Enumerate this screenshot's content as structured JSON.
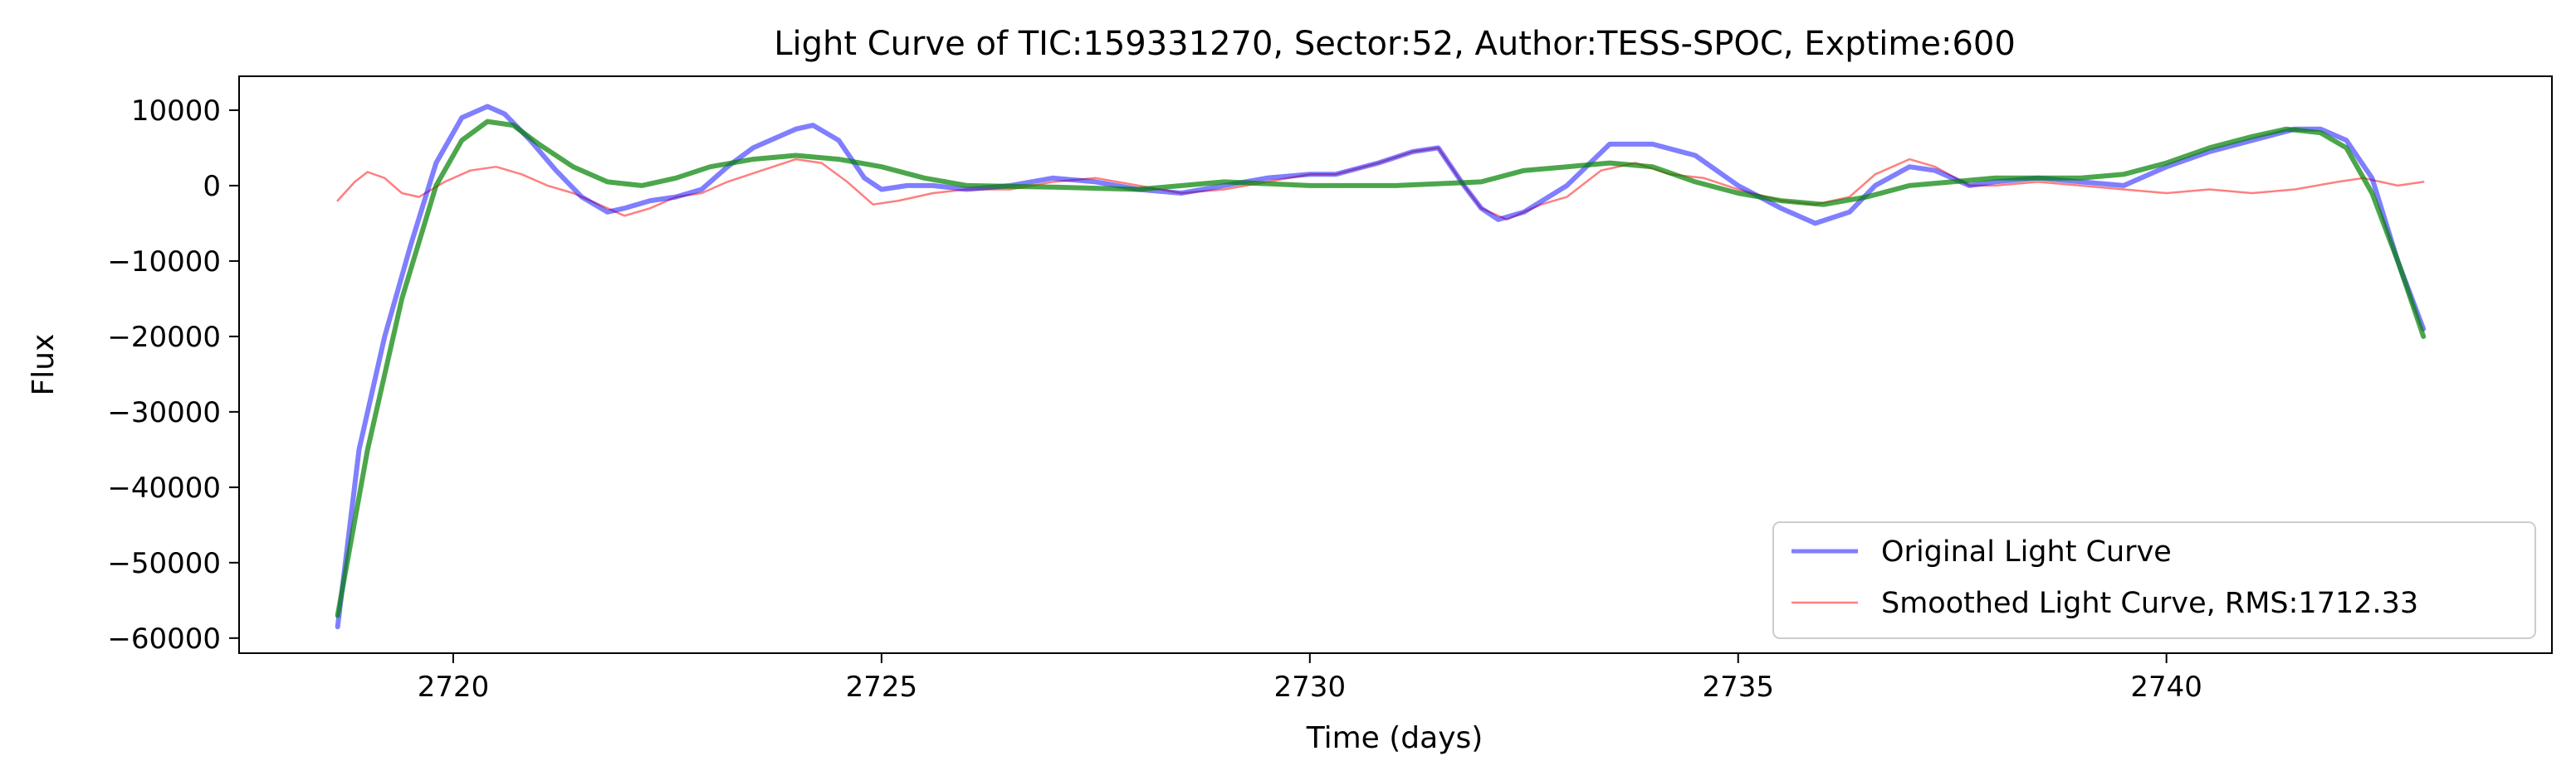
{
  "chart_data": {
    "type": "line",
    "title": "Light Curve of TIC:159331270, Sector:52, Author:TESS-SPOC, Exptime:600",
    "xlabel": "Time (days)",
    "ylabel": "Flux",
    "xlim": [
      2717.5,
      2744.5
    ],
    "ylim": [
      -62000,
      14500
    ],
    "x_ticks": [
      2720,
      2725,
      2730,
      2735,
      2740
    ],
    "y_ticks": [
      10000,
      0,
      -10000,
      -20000,
      -30000,
      -40000,
      -50000,
      -60000
    ],
    "y_tick_labels": [
      "10000",
      "0",
      "−10000",
      "−20000",
      "−30000",
      "−40000",
      "−50000",
      "−60000"
    ],
    "grid": false,
    "legend_position": "lower-right",
    "colors": {
      "original": "#0000ff",
      "smoothed": "#ff0000",
      "fit": "#008000"
    },
    "series": [
      {
        "name": "Original Light Curve",
        "key": "original",
        "x": [
          2718.65,
          2718.9,
          2719.2,
          2719.5,
          2719.8,
          2720.1,
          2720.4,
          2720.6,
          2720.9,
          2721.2,
          2721.5,
          2721.8,
          2722.0,
          2722.3,
          2722.6,
          2722.9,
          2723.2,
          2723.5,
          2723.8,
          2724.0,
          2724.2,
          2724.5,
          2724.8,
          2725.0,
          2725.3,
          2725.6,
          2726.0,
          2726.5,
          2727.0,
          2727.5,
          2728.0,
          2728.5,
          2729.0,
          2729.5,
          2730.0,
          2730.3,
          2730.8,
          2731.2,
          2731.5,
          2731.8,
          2732.0,
          2732.2,
          2732.5,
          2733.0,
          2733.5,
          2734.0,
          2734.5,
          2735.0,
          2735.5,
          2735.9,
          2736.3,
          2736.6,
          2737.0,
          2737.3,
          2737.7,
          2738.0,
          2738.5,
          2739.0,
          2739.5,
          2740.0,
          2740.5,
          2741.0,
          2741.5,
          2741.8,
          2742.1,
          2742.4,
          2742.7,
          2743.0
        ],
        "y": [
          -58500,
          -35000,
          -20000,
          -8000,
          3000,
          9000,
          10500,
          9500,
          6000,
          2000,
          -1500,
          -3500,
          -3000,
          -2000,
          -1500,
          -500,
          2500,
          5000,
          6500,
          7500,
          8000,
          6000,
          1000,
          -500,
          0,
          0,
          -500,
          0,
          1000,
          500,
          -500,
          -1000,
          0,
          1000,
          1500,
          1500,
          3000,
          4500,
          5000,
          0,
          -3000,
          -4500,
          -3500,
          0,
          5500,
          5500,
          4000,
          0,
          -3000,
          -5000,
          -3500,
          0,
          2500,
          2000,
          0,
          500,
          1000,
          500,
          0,
          2500,
          4500,
          6000,
          7500,
          7500,
          6000,
          1000,
          -10000,
          -19000
        ]
      },
      {
        "name": "Smoothed Light Curve, RMS:1712.33",
        "key": "smoothed",
        "x": [
          2718.65,
          2718.85,
          2719.0,
          2719.2,
          2719.4,
          2719.6,
          2719.9,
          2720.2,
          2720.5,
          2720.8,
          2721.1,
          2721.4,
          2721.7,
          2722.0,
          2722.3,
          2722.6,
          2722.9,
          2723.2,
          2723.6,
          2724.0,
          2724.3,
          2724.6,
          2724.9,
          2725.2,
          2725.6,
          2726.0,
          2726.5,
          2727.0,
          2727.5,
          2728.0,
          2728.5,
          2729.0,
          2729.5,
          2730.0,
          2730.3,
          2730.8,
          2731.2,
          2731.5,
          2731.8,
          2732.0,
          2732.3,
          2732.7,
          2733.0,
          2733.4,
          2733.8,
          2734.2,
          2734.6,
          2735.0,
          2735.5,
          2735.9,
          2736.3,
          2736.6,
          2737.0,
          2737.3,
          2737.7,
          2738.0,
          2738.5,
          2739.0,
          2739.5,
          2740.0,
          2740.5,
          2741.0,
          2741.5,
          2742.0,
          2742.3,
          2742.7,
          2743.0
        ],
        "y": [
          -2000,
          500,
          1800,
          1000,
          -1000,
          -1500,
          500,
          2000,
          2500,
          1500,
          0,
          -1000,
          -2500,
          -4000,
          -3000,
          -1500,
          -1000,
          500,
          2000,
          3500,
          3000,
          500,
          -2500,
          -2000,
          -1000,
          -500,
          -500,
          500,
          1000,
          0,
          -1000,
          -500,
          500,
          1500,
          1500,
          3000,
          4500,
          5000,
          0,
          -3000,
          -4500,
          -2500,
          -1500,
          2000,
          3000,
          1500,
          1000,
          -500,
          -2000,
          -2500,
          -1500,
          1500,
          3500,
          2500,
          0,
          0,
          500,
          0,
          -500,
          -1000,
          -500,
          -1000,
          -500,
          500,
          1000,
          0,
          500
        ]
      },
      {
        "name": "",
        "key": "fit",
        "x": [
          2718.65,
          2719.0,
          2719.4,
          2719.8,
          2720.1,
          2720.4,
          2720.7,
          2721.0,
          2721.4,
          2721.8,
          2722.2,
          2722.6,
          2723.0,
          2723.5,
          2724.0,
          2724.5,
          2725.0,
          2725.5,
          2726.0,
          2727.0,
          2728.0,
          2729.0,
          2730.0,
          2731.0,
          2732.0,
          2732.5,
          2733.0,
          2733.5,
          2734.0,
          2734.5,
          2735.0,
          2735.5,
          2736.0,
          2736.5,
          2737.0,
          2737.5,
          2738.0,
          2738.5,
          2739.0,
          2739.5,
          2740.0,
          2740.5,
          2741.0,
          2741.4,
          2741.8,
          2742.1,
          2742.4,
          2742.7,
          2743.0
        ],
        "y": [
          -57000,
          -35000,
          -15000,
          0,
          6000,
          8500,
          8000,
          5500,
          2500,
          500,
          0,
          1000,
          2500,
          3500,
          4000,
          3500,
          2500,
          1000,
          0,
          -200,
          -500,
          500,
          0,
          0,
          500,
          2000,
          2500,
          3000,
          2500,
          500,
          -1000,
          -2000,
          -2500,
          -1500,
          0,
          500,
          1000,
          1000,
          1000,
          1500,
          3000,
          5000,
          6500,
          7500,
          7000,
          5000,
          -1000,
          -10000,
          -20000
        ]
      }
    ]
  }
}
